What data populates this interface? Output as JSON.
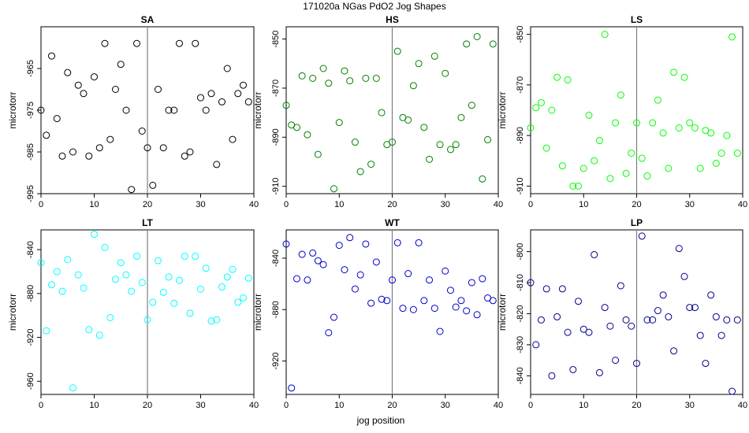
{
  "figure": {
    "title": "171020a   NGas PdO2 Jog Shapes",
    "xlabel": "jog position"
  },
  "chart_data": [
    {
      "type": "scatter",
      "title": "SA",
      "ylabel": "microtorr",
      "color": "#000000",
      "xlim": [
        0,
        40
      ],
      "ylim": [
        -995,
        -955
      ],
      "xticks": [
        0,
        10,
        20,
        30,
        40
      ],
      "yticks": [
        -995,
        -985,
        -975,
        -965
      ],
      "vline_x": 20,
      "x": [
        0,
        1,
        2,
        3,
        4,
        5,
        6,
        7,
        8,
        9,
        10,
        11,
        12,
        13,
        14,
        15,
        16,
        17,
        18,
        19,
        20,
        21,
        22,
        23,
        24,
        25,
        26,
        27,
        28,
        29,
        30,
        31,
        32,
        33,
        34,
        35,
        36,
        37,
        38,
        39
      ],
      "y": [
        -975,
        -981,
        -962,
        -977,
        -986,
        -966,
        -985,
        -969,
        -971,
        -986,
        -967,
        -984,
        -959,
        -982,
        -970,
        -964,
        -975,
        -994,
        -959,
        -980,
        -984,
        -993,
        -970,
        -984,
        -975,
        -975,
        -959,
        -986,
        -985,
        -959,
        -972,
        -975,
        -971,
        -988,
        -973,
        -965,
        -982,
        -971,
        -969,
        -973
      ]
    },
    {
      "type": "scatter",
      "title": "HS",
      "ylabel": "microtorr",
      "color": "#008000",
      "xlim": [
        0,
        40
      ],
      "ylim": [
        -913,
        -845
      ],
      "xticks": [
        0,
        10,
        20,
        30,
        40
      ],
      "yticks": [
        -910,
        -890,
        -870,
        -850
      ],
      "vline_x": 20,
      "x": [
        0,
        1,
        2,
        3,
        4,
        5,
        6,
        7,
        8,
        9,
        10,
        11,
        12,
        13,
        14,
        15,
        16,
        17,
        18,
        19,
        20,
        21,
        22,
        23,
        24,
        25,
        26,
        27,
        28,
        29,
        30,
        31,
        32,
        33,
        34,
        35,
        36,
        37,
        38,
        39
      ],
      "y": [
        -877,
        -885,
        -886,
        -865,
        -889,
        -866,
        -897,
        -862,
        -868,
        -911,
        -884,
        -863,
        -867,
        -892,
        -904,
        -866,
        -901,
        -866,
        -880,
        -893,
        -892,
        -855,
        -882,
        -883,
        -869,
        -860,
        -886,
        -899,
        -857,
        -893,
        -864,
        -895,
        -893,
        -882,
        -852,
        -877,
        -849,
        -907,
        -891,
        -852
      ]
    },
    {
      "type": "scatter",
      "title": "LS",
      "ylabel": "microtorr",
      "color": "#00ff00",
      "xlim": [
        0,
        40
      ],
      "ylim": [
        -913,
        -847
      ],
      "xticks": [
        0,
        10,
        20,
        30,
        40
      ],
      "yticks": [
        -910,
        -890,
        -870,
        -850
      ],
      "vline_x": 20,
      "x": [
        0,
        1,
        2,
        3,
        4,
        5,
        6,
        7,
        8,
        9,
        10,
        11,
        12,
        13,
        14,
        15,
        16,
        17,
        18,
        19,
        20,
        21,
        22,
        23,
        24,
        25,
        26,
        27,
        28,
        29,
        30,
        31,
        32,
        33,
        34,
        35,
        36,
        37,
        38,
        39
      ],
      "y": [
        -887,
        -879,
        -877,
        -895,
        -880,
        -867,
        -902,
        -868,
        -910,
        -910,
        -903,
        -882,
        -900,
        -892,
        -850,
        -907,
        -885,
        -874,
        -905,
        -897,
        -885,
        -899,
        -906,
        -885,
        -876,
        -889,
        -903,
        -865,
        -887,
        -867,
        -885,
        -887,
        -903,
        -888,
        -889,
        -901,
        -897,
        -890,
        -851,
        -897
      ]
    },
    {
      "type": "scatter",
      "title": "LT",
      "ylabel": "microtorr",
      "color": "#00ffff",
      "xlim": [
        0,
        40
      ],
      "ylim": [
        -972,
        -822
      ],
      "xticks": [
        0,
        10,
        20,
        30,
        40
      ],
      "yticks": [
        -960,
        -920,
        -880,
        -840
      ],
      "vline_x": 20,
      "x": [
        0,
        1,
        2,
        3,
        4,
        5,
        6,
        7,
        8,
        9,
        10,
        11,
        12,
        13,
        14,
        15,
        16,
        17,
        18,
        19,
        20,
        21,
        22,
        23,
        24,
        25,
        26,
        27,
        28,
        29,
        30,
        31,
        32,
        33,
        34,
        35,
        36,
        37,
        38,
        39
      ],
      "y": [
        -852,
        -914,
        -872,
        -860,
        -878,
        -849,
        -966,
        -863,
        -875,
        -913,
        -826,
        -918,
        -838,
        -902,
        -867,
        -852,
        -863,
        -878,
        -846,
        -870,
        -904,
        -888,
        -850,
        -879,
        -865,
        -889,
        -868,
        -846,
        -898,
        -846,
        -876,
        -857,
        -905,
        -904,
        -874,
        -865,
        -858,
        -888,
        -884,
        -866
      ]
    },
    {
      "type": "scatter",
      "title": "WT",
      "ylabel": "microtorr",
      "color": "#0000cd",
      "xlim": [
        0,
        40
      ],
      "ylim": [
        -946,
        -818
      ],
      "xticks": [
        0,
        10,
        20,
        30,
        40
      ],
      "yticks": [
        -920,
        -880,
        -840
      ],
      "vline_x": 20,
      "x": [
        0,
        1,
        2,
        3,
        4,
        5,
        6,
        7,
        8,
        9,
        10,
        11,
        12,
        13,
        14,
        15,
        16,
        17,
        18,
        19,
        20,
        21,
        22,
        23,
        24,
        25,
        26,
        27,
        28,
        29,
        30,
        31,
        32,
        33,
        34,
        35,
        36,
        37,
        38,
        39
      ],
      "y": [
        -829,
        -941,
        -856,
        -837,
        -857,
        -836,
        -842,
        -845,
        -898,
        -886,
        -830,
        -849,
        -824,
        -864,
        -853,
        -829,
        -875,
        -843,
        -872,
        -873,
        -857,
        -828,
        -879,
        -852,
        -880,
        -828,
        -873,
        -857,
        -879,
        -897,
        -850,
        -865,
        -878,
        -873,
        -881,
        -859,
        -884,
        -856,
        -871,
        -873
      ]
    },
    {
      "type": "scatter",
      "title": "LP",
      "ylabel": "microtorr",
      "color": "#00008b",
      "xlim": [
        0,
        40
      ],
      "ylim": [
        -846,
        -793
      ],
      "xticks": [
        0,
        10,
        20,
        30,
        40
      ],
      "yticks": [
        -840,
        -830,
        -820,
        -810,
        -800
      ],
      "vline_x": 20,
      "x": [
        0,
        1,
        2,
        3,
        4,
        5,
        6,
        7,
        8,
        9,
        10,
        11,
        12,
        13,
        14,
        15,
        16,
        17,
        18,
        19,
        20,
        21,
        22,
        23,
        24,
        25,
        26,
        27,
        28,
        29,
        30,
        31,
        32,
        33,
        34,
        35,
        36,
        37,
        38,
        39
      ],
      "y": [
        -810,
        -830,
        -822,
        -812,
        -840,
        -821,
        -812,
        -826,
        -838,
        -816,
        -825,
        -826,
        -801,
        -839,
        -818,
        -824,
        -835,
        -811,
        -822,
        -824,
        -836,
        -795,
        -822,
        -822,
        -819,
        -814,
        -821,
        -832,
        -799,
        -808,
        -818,
        -818,
        -827,
        -836,
        -814,
        -821,
        -827,
        -822,
        -845,
        -822
      ]
    }
  ]
}
